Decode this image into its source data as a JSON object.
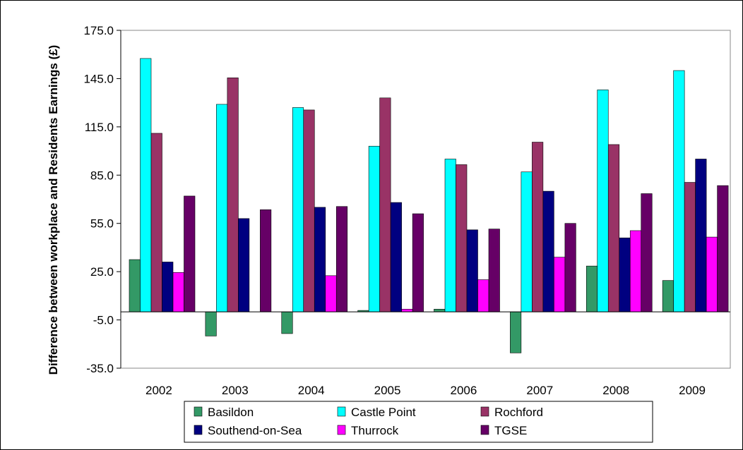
{
  "chart_data": {
    "type": "bar",
    "title": "",
    "xlabel": "",
    "ylabel": "Difference between workplace and Residents Earnings (£)",
    "categories": [
      "2002",
      "2003",
      "2004",
      "2005",
      "2006",
      "2007",
      "2008",
      "2009"
    ],
    "ylim": [
      -35.0,
      175.0
    ],
    "yticks": [
      "175.0",
      "145.0",
      "115.0",
      "85.0",
      "55.0",
      "25.0",
      "-5.0",
      "-35.0"
    ],
    "ytick_values": [
      175,
      145,
      115,
      85,
      55,
      25,
      -5,
      -35
    ],
    "grid": false,
    "legend_position": "bottom",
    "series": [
      {
        "name": "Basildon",
        "color": "#339966",
        "values": [
          32.5,
          0,
          0,
          0.9,
          1.7,
          0,
          28.5,
          19.5
        ]
      },
      {
        "name": "Castle Point",
        "color": "#00FFFF",
        "values": [
          157.5,
          129,
          127,
          103,
          95,
          87,
          138,
          150
        ]
      },
      {
        "name": "Rochford",
        "color": "#993366",
        "values": [
          111,
          145.5,
          125.5,
          133,
          91.5,
          105.5,
          104,
          80.5
        ]
      },
      {
        "name": "Southend-on-Sea",
        "color": "#000080",
        "values": [
          31,
          58,
          65,
          68,
          51,
          75,
          46,
          95
        ]
      },
      {
        "name": "Thurrock",
        "color": "#FF00FF",
        "values": [
          24.5,
          0,
          22.5,
          1.7,
          20,
          34,
          50.5,
          46.5
        ]
      },
      {
        "name": "TGSE",
        "color": "#660066",
        "values": [
          72,
          63.5,
          65.5,
          61,
          51.5,
          55,
          73.5,
          78.5
        ]
      }
    ],
    "basildon_negative": [
      0,
      -15,
      -13.5,
      0,
      0,
      -25.5,
      0,
      0
    ]
  }
}
